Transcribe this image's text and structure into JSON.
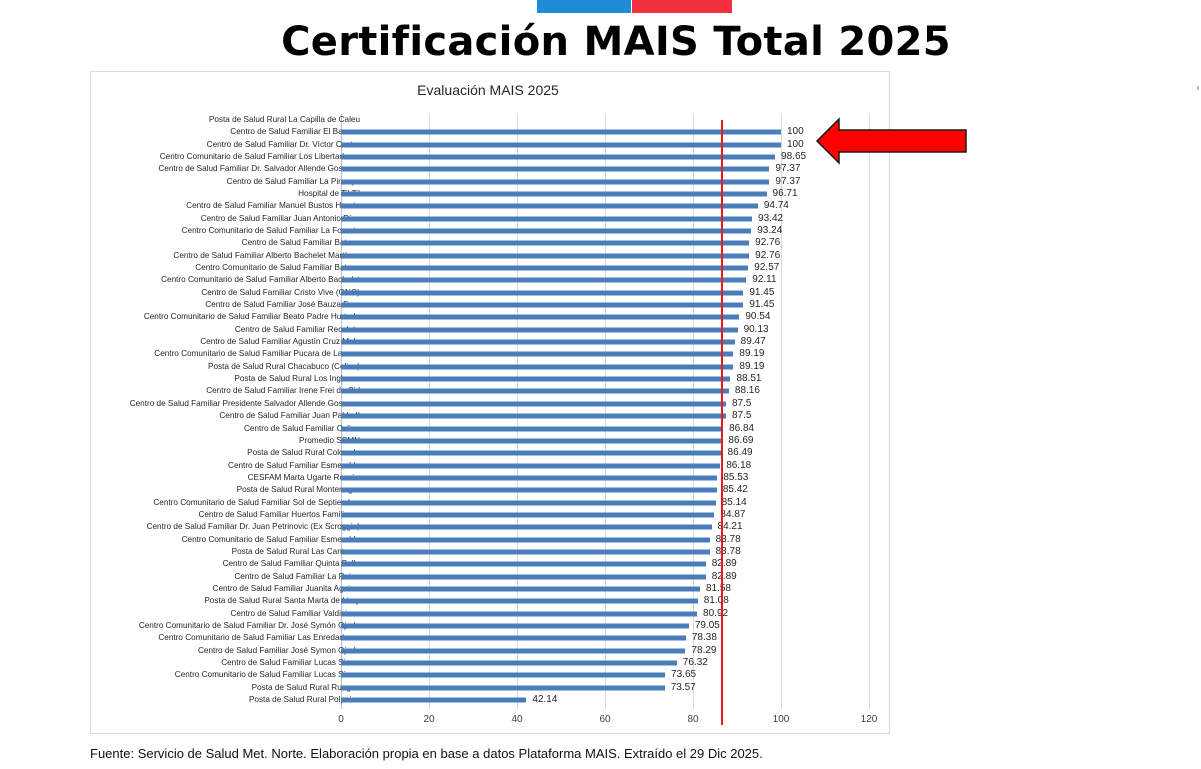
{
  "slide": {
    "title": "Certificación MAIS Total 2025",
    "flag_colors": [
      "#1f8bd6",
      "#f2313f"
    ],
    "footer": "Fuente: Servicio de Salud Met. Norte. Elaboración propia en base a datos Plataforma MAIS. Extraído el 29 Dic 2025.",
    "arrow_color": "#ff0000",
    "arrow_points_to": "Centro de Salud Familiar El Barrero / Centro de Salud Familiar Dr. Víctor Castro"
  },
  "chart": {
    "title": "Evaluación MAIS 2025",
    "bar_color": "#4a7ebb",
    "reference_line_color": "#e81c1c"
  },
  "chart_data": {
    "type": "bar",
    "orientation": "horizontal",
    "title": "Evaluación MAIS 2025",
    "xlabel": "",
    "ylabel": "",
    "xlim": [
      0,
      120
    ],
    "x_ticks": [
      "0",
      "20",
      "40",
      "60",
      "80",
      "100",
      "120"
    ],
    "grid": true,
    "legend": null,
    "reference_line": {
      "label": "Promedio SSMN",
      "value": 86.69
    },
    "categories": [
      "Posta de Salud Rural La Capilla de Caleu",
      "Centro de Salud Familiar El Barrero",
      "Centro de Salud Familiar Dr. Víctor Castro",
      "Centro Comunitario de Salud Familiar Los Libertadores",
      "Centro de Salud Familiar Dr. Salvador Allende Gossens",
      "Centro de Salud Familiar La Pincoya",
      "Hospital de Til Til",
      "Centro de Salud Familiar Manuel Bustos Huerta",
      "Centro de Salud Familiar Juan Antonio Ríos",
      "Centro Comunitario de Salud Familiar La Foresta",
      "Centro de Salud Familiar Batuco",
      "Centro de Salud Familiar Alberto Bachelet Martínez",
      "Centro Comunitario de Salud Familiar Batuco",
      "Centro Comunitario de Salud Familiar Alberto Bachelet",
      "Centro de Salud Familiar Cristo Vive (ONG)",
      "Centro de Salud Familiar José Bauza Frau",
      "Centro Comunitario de Salud Familiar Beato Padre Hurtado",
      "Centro de Salud Familiar Recoleta",
      "Centro de Salud Familiar Agustín Cruz Melo",
      "Centro Comunitario de Salud Familiar Pucara de Lasana",
      "Posta de Salud Rural Chacabuco (Colina)",
      "Posta de Salud Rural Los Ingleses",
      "Centro de Salud Familiar Irene Frei de Cid",
      "Centro de Salud Familiar Presidente Salvador Allende Gossens",
      "Centro de Salud Familiar Juan Pablo II",
      "Centro de Salud Familiar Colina",
      "Promedio SSMN",
      "Posta de Salud Rural Colorado",
      "Centro de Salud Familiar Esmeralda",
      "CESFAM Marta Ugarte Román",
      "Posta de Salud Rural Montenegro",
      "Centro Comunitario de Salud Familiar Sol de Septiembre",
      "Centro de Salud Familiar Huertos Familiares",
      "Centro de Salud Familiar Dr. Juan Petrinovic (Ex Scroggie)",
      "Centro Comunitario de Salud Familiar Esmeralda",
      "Posta de Salud Rural Las Canteras",
      "Centro de Salud Familiar Quinta Bella",
      "Centro de Salud Familiar La Reina",
      "Centro de Salud Familiar Juanita Aguirre",
      "Posta de Salud Rural Santa Marta de Liray",
      "Centro de Salud Familiar Valdivieso",
      "Centro Comunitario de Salud Familiar Dr. José Symón Ojeda",
      "Centro Comunitario de Salud Familiar Las Enredaderas",
      "Centro de Salud Familiar José Symon Ojeda",
      "Centro de Salud Familiar Lucas Sierra",
      "Centro Comunitario de Salud Familiar Lucas Sierra",
      "Posta de Salud Rural Rungue",
      "Posta de Salud Rural Polpaico"
    ],
    "values": [
      null,
      100,
      100,
      98.65,
      97.37,
      97.37,
      96.71,
      94.74,
      93.42,
      93.24,
      92.76,
      92.76,
      92.57,
      92.11,
      91.45,
      91.45,
      90.54,
      90.13,
      89.47,
      89.19,
      89.19,
      88.51,
      88.16,
      87.5,
      87.5,
      86.84,
      86.69,
      86.49,
      86.18,
      85.53,
      85.42,
      85.14,
      84.87,
      84.21,
      83.78,
      83.78,
      82.89,
      82.89,
      81.58,
      81.08,
      80.92,
      79.05,
      78.38,
      78.29,
      76.32,
      73.65,
      73.57,
      42.14
    ],
    "value_labels": [
      "",
      "100",
      "100",
      "98.65",
      "97.37",
      "97.37",
      "96.71",
      "94.74",
      "93.42",
      "93.24",
      "92.76",
      "92.76",
      "92.57",
      "92.11",
      "91.45",
      "91.45",
      "90.54",
      "90.13",
      "89.47",
      "89.19",
      "89.19",
      "88.51",
      "88.16",
      "87.5",
      "87.5",
      "86.84",
      "86.69",
      "86.49",
      "86.18",
      "85.53",
      "85.42",
      "85.14",
      "84.87",
      "84.21",
      "83.78",
      "83.78",
      "82.89",
      "82.89",
      "81.58",
      "81.08",
      "80.92",
      "79.05",
      "78.38",
      "78.29",
      "76.32",
      "73.65",
      "73.57",
      "42.14"
    ]
  }
}
